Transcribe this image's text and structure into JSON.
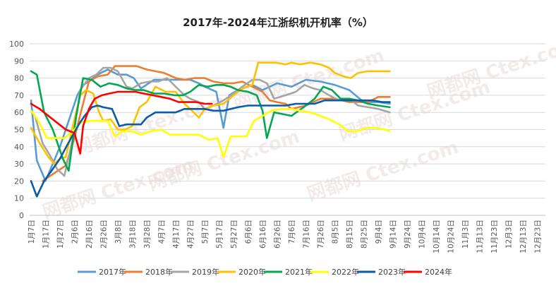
{
  "chart_data": {
    "type": "line",
    "title": "2017年-2024年江浙织机开机率（%）",
    "xlabel": "",
    "ylabel": "",
    "ylim": [
      0,
      100
    ],
    "yticks": [
      0,
      10,
      20,
      30,
      40,
      50,
      60,
      70,
      80,
      90,
      100
    ],
    "grid": true,
    "legend_position": "bottom",
    "watermark": "网都网 Ctex.com",
    "categories": [
      "1月7日",
      "1月17日",
      "1月27日",
      "2月6日",
      "2月16日",
      "2月26日",
      "3月8日",
      "3月18日",
      "3月28日",
      "4月7日",
      "4月17日",
      "4月27日",
      "5月7日",
      "5月17日",
      "5月27日",
      "6月6日",
      "6月16日",
      "6月26日",
      "7月6日",
      "7月16日",
      "7月26日",
      "8月5日",
      "8月15日",
      "8月25日",
      "9月4日",
      "9月14日",
      "9月24日",
      "10月4日",
      "10月14日",
      "10月24日",
      "11月3日",
      "11月13日",
      "11月23日",
      "12月3日",
      "12月13日",
      "12月23日"
    ],
    "series": [
      {
        "name": "2017年",
        "color": "#5b9bd5",
        "values": [
          [
            0.0,
            67
          ],
          [
            0.4,
            32
          ],
          [
            1.0,
            20
          ],
          [
            2.0,
            40
          ],
          [
            2.6,
            55
          ],
          [
            3.2,
            70
          ],
          [
            3.6,
            76
          ],
          [
            4.0,
            78
          ],
          [
            4.6,
            82
          ],
          [
            5.3,
            85
          ],
          [
            6.0,
            82
          ],
          [
            6.6,
            82
          ],
          [
            7.1,
            80
          ],
          [
            7.6,
            74
          ],
          [
            8.5,
            79
          ],
          [
            9.6,
            79
          ],
          [
            10.3,
            79
          ],
          [
            11.0,
            79
          ],
          [
            11.6,
            77
          ],
          [
            12.0,
            75
          ],
          [
            12.8,
            72
          ],
          [
            13.3,
            51
          ],
          [
            13.7,
            70
          ],
          [
            14.3,
            73
          ],
          [
            15.3,
            76
          ],
          [
            16.0,
            73
          ],
          [
            16.5,
            75
          ],
          [
            17.0,
            77
          ],
          [
            18.0,
            75
          ],
          [
            19.0,
            79
          ],
          [
            20.0,
            78
          ],
          [
            21.0,
            76
          ],
          [
            22.0,
            73
          ],
          [
            23.0,
            66
          ],
          [
            24.0,
            66
          ],
          [
            24.8,
            65
          ]
        ]
      },
      {
        "name": "2018年",
        "color": "#ed7d31",
        "values": [
          [
            0.8,
            20
          ],
          [
            1.5,
            24
          ],
          [
            2.4,
            29
          ],
          [
            3.0,
            45
          ],
          [
            3.5,
            62
          ],
          [
            4.0,
            78
          ],
          [
            4.6,
            81
          ],
          [
            5.3,
            82
          ],
          [
            5.8,
            87
          ],
          [
            6.5,
            87
          ],
          [
            7.3,
            87
          ],
          [
            8.0,
            85
          ],
          [
            8.6,
            84
          ],
          [
            9.2,
            83
          ],
          [
            10.0,
            80
          ],
          [
            10.6,
            79
          ],
          [
            11.3,
            80
          ],
          [
            12.0,
            80
          ],
          [
            12.6,
            78
          ],
          [
            13.3,
            77
          ],
          [
            14.0,
            77
          ],
          [
            14.6,
            78
          ],
          [
            15.3,
            75
          ],
          [
            16.0,
            72
          ],
          [
            16.5,
            67
          ],
          [
            17.0,
            66
          ],
          [
            17.6,
            65
          ],
          [
            18.0,
            62
          ],
          [
            19.0,
            64
          ],
          [
            20.0,
            68
          ],
          [
            21.0,
            68
          ],
          [
            22.0,
            66
          ],
          [
            22.6,
            66
          ],
          [
            23.3,
            66
          ],
          [
            24.0,
            69
          ],
          [
            24.8,
            69
          ]
        ]
      },
      {
        "name": "2019年",
        "color": "#a5a5a5",
        "values": [
          [
            0.3,
            57
          ],
          [
            0.8,
            42
          ],
          [
            1.3,
            35
          ],
          [
            1.8,
            27
          ],
          [
            2.3,
            23
          ],
          [
            2.9,
            45
          ],
          [
            3.4,
            73
          ],
          [
            4.0,
            80
          ],
          [
            4.5,
            82
          ],
          [
            5.0,
            86
          ],
          [
            5.5,
            86
          ],
          [
            6.0,
            84
          ],
          [
            6.6,
            75
          ],
          [
            7.0,
            74
          ],
          [
            7.6,
            77
          ],
          [
            8.2,
            78
          ],
          [
            8.8,
            78
          ],
          [
            9.4,
            80
          ],
          [
            10.0,
            75
          ],
          [
            10.6,
            70
          ],
          [
            11.0,
            68
          ],
          [
            11.6,
            66
          ],
          [
            12.0,
            62
          ],
          [
            12.6,
            64
          ],
          [
            13.3,
            67
          ],
          [
            14.0,
            71
          ],
          [
            14.6,
            75
          ],
          [
            15.3,
            79
          ],
          [
            15.8,
            79
          ],
          [
            16.3,
            77
          ],
          [
            16.8,
            68
          ],
          [
            17.6,
            70
          ],
          [
            18.3,
            72
          ],
          [
            18.9,
            76
          ],
          [
            19.5,
            74
          ],
          [
            20.0,
            73
          ],
          [
            20.6,
            70
          ],
          [
            21.3,
            67
          ],
          [
            22.0,
            68
          ],
          [
            22.6,
            64
          ],
          [
            23.3,
            63
          ],
          [
            24.0,
            62
          ],
          [
            24.8,
            60
          ]
        ]
      },
      {
        "name": "2020年",
        "color": "#ffc000",
        "values": [
          [
            0.0,
            51
          ],
          [
            0.6,
            42
          ],
          [
            1.2,
            34
          ],
          [
            1.6,
            30
          ],
          [
            2.0,
            33
          ],
          [
            2.4,
            34
          ],
          [
            3.0,
            56
          ],
          [
            3.4,
            70
          ],
          [
            3.8,
            73
          ],
          [
            4.3,
            71
          ],
          [
            4.7,
            60
          ],
          [
            5.0,
            55
          ],
          [
            5.5,
            56
          ],
          [
            6.0,
            50
          ],
          [
            6.5,
            50
          ],
          [
            7.0,
            52
          ],
          [
            7.5,
            63
          ],
          [
            8.0,
            66
          ],
          [
            8.6,
            75
          ],
          [
            9.3,
            72
          ],
          [
            10.0,
            72
          ],
          [
            10.6,
            65
          ],
          [
            11.0,
            62
          ],
          [
            11.6,
            57
          ],
          [
            12.0,
            62
          ],
          [
            12.6,
            64
          ],
          [
            13.3,
            65
          ],
          [
            14.0,
            70
          ],
          [
            14.6,
            74
          ],
          [
            15.3,
            76
          ],
          [
            15.7,
            89
          ],
          [
            16.3,
            89
          ],
          [
            16.9,
            89
          ],
          [
            17.6,
            88
          ],
          [
            18.0,
            89
          ],
          [
            18.6,
            88
          ],
          [
            19.3,
            89
          ],
          [
            20.0,
            88
          ],
          [
            20.6,
            86
          ],
          [
            21.0,
            83
          ],
          [
            21.6,
            81
          ],
          [
            22.1,
            80
          ],
          [
            22.6,
            83
          ],
          [
            23.3,
            84
          ],
          [
            24.0,
            84
          ],
          [
            24.8,
            84
          ]
        ]
      },
      {
        "name": "2021年",
        "color": "#00a850",
        "values": [
          [
            0.0,
            84
          ],
          [
            0.4,
            82
          ],
          [
            0.9,
            60
          ],
          [
            1.5,
            50
          ],
          [
            2.2,
            33
          ],
          [
            2.6,
            26
          ],
          [
            3.1,
            57
          ],
          [
            3.6,
            80
          ],
          [
            4.2,
            79
          ],
          [
            4.8,
            75
          ],
          [
            5.4,
            77
          ],
          [
            6.0,
            76
          ],
          [
            6.6,
            74
          ],
          [
            7.2,
            73
          ],
          [
            7.8,
            73
          ],
          [
            8.5,
            71
          ],
          [
            9.2,
            71
          ],
          [
            9.9,
            70
          ],
          [
            10.5,
            70
          ],
          [
            11.0,
            72
          ],
          [
            11.6,
            76
          ],
          [
            12.2,
            75
          ],
          [
            12.8,
            76
          ],
          [
            13.3,
            76
          ],
          [
            13.8,
            75
          ],
          [
            14.3,
            73
          ],
          [
            15.0,
            72
          ],
          [
            15.6,
            70
          ],
          [
            16.0,
            61
          ],
          [
            16.3,
            45
          ],
          [
            16.8,
            60
          ],
          [
            17.4,
            59
          ],
          [
            18.0,
            58
          ],
          [
            18.5,
            61
          ],
          [
            19.0,
            64
          ],
          [
            19.6,
            68
          ],
          [
            20.2,
            75
          ],
          [
            20.8,
            73
          ],
          [
            21.4,
            68
          ],
          [
            22.0,
            68
          ],
          [
            22.6,
            67
          ],
          [
            23.3,
            65
          ],
          [
            24.0,
            64
          ],
          [
            24.8,
            63
          ]
        ]
      },
      {
        "name": "2022年",
        "color": "#ffff00",
        "values": [
          [
            0.0,
            61
          ],
          [
            0.5,
            55
          ],
          [
            1.1,
            45
          ],
          [
            1.7,
            45
          ],
          [
            2.3,
            45
          ],
          [
            2.9,
            49
          ],
          [
            3.4,
            54
          ],
          [
            4.0,
            55
          ],
          [
            4.6,
            55
          ],
          [
            5.3,
            55
          ],
          [
            5.8,
            46
          ],
          [
            6.3,
            49
          ],
          [
            7.0,
            49
          ],
          [
            7.6,
            47
          ],
          [
            8.3,
            49
          ],
          [
            9.0,
            50
          ],
          [
            9.6,
            47
          ],
          [
            10.3,
            47
          ],
          [
            11.0,
            47
          ],
          [
            11.6,
            47
          ],
          [
            12.3,
            44
          ],
          [
            12.9,
            45
          ],
          [
            13.3,
            34
          ],
          [
            13.8,
            46
          ],
          [
            14.3,
            46
          ],
          [
            14.9,
            46
          ],
          [
            15.4,
            55
          ],
          [
            16.0,
            58
          ],
          [
            16.6,
            61
          ],
          [
            17.3,
            62
          ],
          [
            18.0,
            62
          ],
          [
            18.6,
            61
          ],
          [
            19.3,
            60
          ],
          [
            20.0,
            58
          ],
          [
            20.6,
            56
          ],
          [
            21.3,
            53
          ],
          [
            21.9,
            49
          ],
          [
            22.5,
            49
          ],
          [
            23.2,
            51
          ],
          [
            23.8,
            51
          ],
          [
            24.5,
            50
          ],
          [
            24.8,
            49
          ]
        ]
      },
      {
        "name": "2023年",
        "color": "#0a5ba8",
        "values": [
          [
            0.0,
            20
          ],
          [
            0.4,
            11
          ],
          [
            0.9,
            20
          ],
          [
            1.5,
            27
          ],
          [
            2.0,
            33
          ],
          [
            2.5,
            41
          ],
          [
            2.9,
            47
          ],
          [
            3.3,
            53
          ],
          [
            3.7,
            58
          ],
          [
            4.2,
            63
          ],
          [
            4.6,
            64
          ],
          [
            5.0,
            63
          ],
          [
            5.6,
            62
          ],
          [
            6.1,
            52
          ],
          [
            6.6,
            53
          ],
          [
            7.1,
            53
          ],
          [
            7.6,
            53
          ],
          [
            8.0,
            57
          ],
          [
            8.6,
            60
          ],
          [
            9.3,
            60
          ],
          [
            10.0,
            60
          ],
          [
            10.6,
            62
          ],
          [
            11.3,
            62
          ],
          [
            12.0,
            62
          ],
          [
            12.6,
            61
          ],
          [
            13.3,
            61
          ],
          [
            13.8,
            62
          ],
          [
            14.3,
            63
          ],
          [
            15.0,
            64
          ],
          [
            15.6,
            64
          ],
          [
            16.3,
            64
          ],
          [
            17.0,
            64
          ],
          [
            17.6,
            64
          ],
          [
            18.3,
            65
          ],
          [
            19.0,
            65
          ],
          [
            19.6,
            65
          ],
          [
            20.3,
            67
          ],
          [
            21.0,
            67
          ],
          [
            21.7,
            67
          ],
          [
            22.3,
            67
          ],
          [
            23.0,
            67
          ],
          [
            23.6,
            67
          ],
          [
            24.3,
            66
          ],
          [
            24.8,
            66
          ]
        ]
      },
      {
        "name": "2024年",
        "color": "#ff0000",
        "values": [
          [
            0.0,
            65
          ],
          [
            0.6,
            62
          ],
          [
            1.2,
            58
          ],
          [
            1.8,
            54
          ],
          [
            2.4,
            50
          ],
          [
            3.0,
            48
          ],
          [
            3.4,
            36
          ],
          [
            3.6,
            52
          ],
          [
            4.0,
            62
          ],
          [
            4.4,
            68
          ],
          [
            4.9,
            70
          ],
          [
            5.4,
            71
          ],
          [
            6.0,
            72
          ],
          [
            6.6,
            72
          ],
          [
            7.2,
            72
          ],
          [
            7.8,
            71
          ],
          [
            8.4,
            70
          ],
          [
            9.0,
            69
          ],
          [
            9.6,
            68
          ],
          [
            10.2,
            66
          ],
          [
            10.8,
            66
          ],
          [
            11.4,
            66
          ],
          [
            12.0,
            65
          ],
          [
            12.5,
            65
          ]
        ]
      }
    ]
  }
}
